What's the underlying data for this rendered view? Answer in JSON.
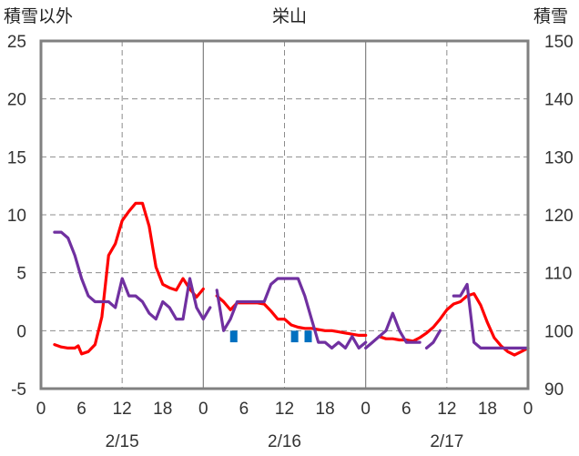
{
  "chart_data": {
    "type": "line",
    "title": "栄山",
    "ylabel_left": "積雪以外",
    "ylabel_right": "積雪",
    "y_left": {
      "range": [
        -5,
        25
      ],
      "ticks": [
        "-5",
        "0",
        "5",
        "10",
        "15",
        "20",
        "25"
      ]
    },
    "y_right": {
      "range": [
        90,
        150
      ],
      "ticks": [
        "90",
        "100",
        "110",
        "120",
        "130",
        "140",
        "150"
      ]
    },
    "x": {
      "range": [
        0,
        72
      ],
      "unit": "hours from 2/15 00:00"
    },
    "x_tick_labels": [
      "0",
      "6",
      "12",
      "18",
      "0",
      "6",
      "12",
      "18",
      "0",
      "6",
      "12",
      "18",
      "0"
    ],
    "date_labels": [
      "2/15",
      "2/16",
      "2/17"
    ],
    "grid": "dashed horizontal at each left-axis tick; dashed vertical at 12:00 each day; solid vertical at day boundaries",
    "colors": {
      "temperature": "#ff0000",
      "snow_depth": "#7030a0",
      "precipitation": "#0070c0",
      "frame": "#808080"
    },
    "series": [
      {
        "axis": "left",
        "color": "#ff0000",
        "segments": [
          [
            [
              2,
              -1.2
            ],
            [
              3,
              -1.4
            ],
            [
              4,
              -1.5
            ],
            [
              5,
              -1.5
            ],
            [
              5.5,
              -1.3
            ],
            [
              6,
              -2.0
            ],
            [
              7,
              -1.8
            ],
            [
              8,
              -1.2
            ],
            [
              9,
              1.2
            ],
            [
              10,
              6.5
            ],
            [
              11,
              7.5
            ],
            [
              12,
              9.5
            ],
            [
              13,
              10.3
            ],
            [
              14,
              11.0
            ],
            [
              15,
              11.0
            ],
            [
              16,
              9.0
            ],
            [
              17,
              5.5
            ],
            [
              18,
              4.0
            ],
            [
              19,
              3.7
            ],
            [
              20,
              3.5
            ],
            [
              21,
              4.5
            ],
            [
              22,
              3.6
            ],
            [
              23,
              2.9
            ],
            [
              24,
              3.6
            ]
          ],
          [
            [
              26,
              3.0
            ],
            [
              27,
              2.5
            ],
            [
              28,
              1.8
            ],
            [
              29,
              2.4
            ],
            [
              30,
              2.4
            ],
            [
              31,
              2.4
            ],
            [
              32,
              2.4
            ],
            [
              33,
              2.3
            ],
            [
              34,
              1.7
            ],
            [
              35,
              1.0
            ],
            [
              36,
              1.0
            ],
            [
              37,
              0.5
            ],
            [
              38,
              0.3
            ],
            [
              39,
              0.2
            ],
            [
              40,
              0.2
            ],
            [
              41,
              0.1
            ],
            [
              42,
              0.0
            ],
            [
              43,
              0.0
            ],
            [
              44,
              -0.1
            ],
            [
              45,
              -0.2
            ],
            [
              46,
              -0.3
            ],
            [
              47,
              -0.4
            ],
            [
              48,
              -0.4
            ]
          ],
          [
            [
              50,
              -0.5
            ],
            [
              51,
              -0.7
            ],
            [
              52,
              -0.7
            ],
            [
              53,
              -0.8
            ],
            [
              54,
              -0.8
            ],
            [
              55,
              -0.9
            ],
            [
              56,
              -0.6
            ],
            [
              57,
              -0.2
            ],
            [
              58,
              0.3
            ],
            [
              59,
              1.0
            ],
            [
              60,
              1.8
            ],
            [
              61,
              2.3
            ],
            [
              62,
              2.5
            ],
            [
              63,
              3.0
            ],
            [
              64,
              3.2
            ],
            [
              65,
              2.2
            ],
            [
              66,
              0.7
            ],
            [
              67,
              -0.6
            ],
            [
              68,
              -1.3
            ],
            [
              69,
              -1.8
            ],
            [
              70,
              -2.1
            ],
            [
              71,
              -1.8
            ],
            [
              72,
              -1.5
            ]
          ]
        ]
      },
      {
        "axis": "right",
        "color": "#7030a0",
        "segments": [
          [
            [
              2,
              117
            ],
            [
              3,
              117
            ],
            [
              4,
              116
            ],
            [
              5,
              113
            ],
            [
              6,
              109
            ],
            [
              7,
              106
            ],
            [
              8,
              105
            ],
            [
              9,
              105
            ],
            [
              10,
              105
            ],
            [
              11,
              104
            ],
            [
              12,
              109
            ],
            [
              13,
              106
            ],
            [
              14,
              106
            ],
            [
              15,
              105
            ],
            [
              16,
              103
            ],
            [
              17,
              102
            ],
            [
              18,
              105
            ],
            [
              19,
              104
            ],
            [
              20,
              102
            ],
            [
              21,
              102
            ],
            [
              22,
              109
            ],
            [
              23,
              104
            ],
            [
              24,
              102
            ],
            [
              25,
              104
            ]
          ],
          [
            [
              26,
              107
            ],
            [
              27,
              100
            ],
            [
              28,
              102
            ],
            [
              29,
              105
            ],
            [
              30,
              105
            ],
            [
              31,
              105
            ],
            [
              32,
              105
            ],
            [
              33,
              105
            ],
            [
              34,
              108
            ],
            [
              35,
              109
            ],
            [
              36,
              109
            ],
            [
              37,
              109
            ],
            [
              38,
              109
            ],
            [
              39,
              106
            ],
            [
              40,
              102
            ],
            [
              41,
              98
            ],
            [
              42,
              98
            ],
            [
              43,
              97
            ],
            [
              44,
              98
            ],
            [
              45,
              97
            ],
            [
              46,
              99
            ],
            [
              47,
              97
            ],
            [
              48,
              98
            ]
          ],
          [
            [
              48,
              97
            ],
            [
              49,
              98
            ],
            [
              50,
              99
            ],
            [
              51,
              100
            ],
            [
              52,
              103
            ],
            [
              53,
              100
            ],
            [
              54,
              98
            ],
            [
              55,
              98
            ],
            [
              56,
              98
            ]
          ],
          [
            [
              57,
              97
            ],
            [
              58,
              98
            ],
            [
              59,
              100
            ]
          ],
          [
            [
              61,
              106
            ],
            [
              62,
              106
            ],
            [
              63,
              108
            ],
            [
              64,
              98
            ],
            [
              65,
              97
            ],
            [
              66,
              97
            ],
            [
              67,
              97
            ],
            [
              68,
              97
            ],
            [
              69,
              97
            ],
            [
              70,
              97
            ],
            [
              71,
              97
            ],
            [
              72,
              97
            ]
          ]
        ]
      },
      {
        "axis": "left",
        "color": "#0070c0",
        "type": "bar",
        "bars": [
          {
            "x": 28.5,
            "y": -1.0
          },
          {
            "x": 37.5,
            "y": -1.0
          },
          {
            "x": 39.5,
            "y": -1.0
          }
        ]
      }
    ]
  }
}
